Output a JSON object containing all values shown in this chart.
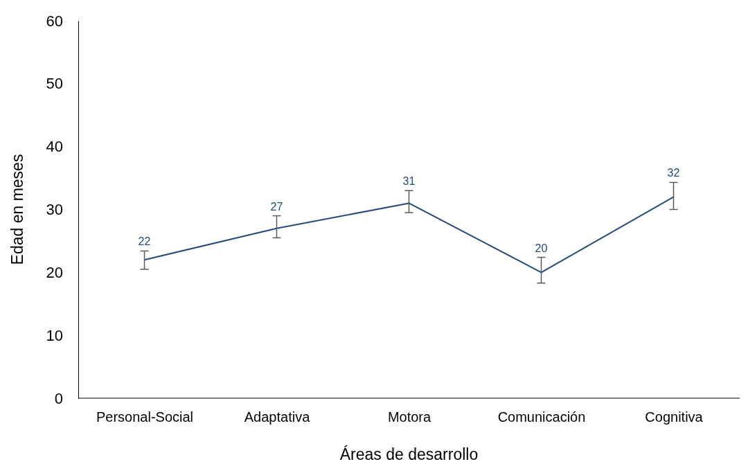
{
  "chart_data": {
    "type": "line",
    "xlabel": "Áreas de desarrollo",
    "ylabel": "Edad en meses",
    "categories": [
      "Personal-Social",
      "Adaptativa",
      "Motora",
      "Comunicación",
      "Cognitiva"
    ],
    "series": [
      {
        "color": "#24497a",
        "values": [
          22,
          27,
          31,
          20,
          32
        ],
        "errors": [
          [
            20.5,
            23.4
          ],
          [
            25.5,
            29
          ],
          [
            29.5,
            33
          ],
          [
            18.3,
            22.4
          ],
          [
            30,
            34.3
          ]
        ]
      }
    ],
    "ylim": [
      0,
      60
    ],
    "yticks": [
      0,
      10,
      20,
      30,
      40,
      50,
      60
    ],
    "grid": false,
    "marker": "none",
    "line_style": "solid",
    "data_labels": true
  }
}
